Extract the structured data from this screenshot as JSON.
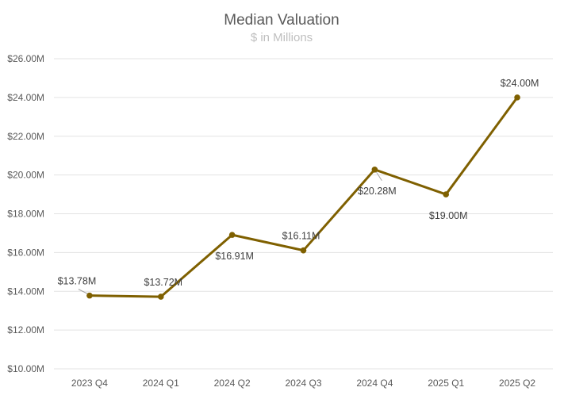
{
  "chart_data": {
    "type": "line",
    "title": "Median Valuation",
    "subtitle": "$ in Millions",
    "xlabel": "",
    "ylabel": "",
    "categories": [
      "2023 Q4",
      "2024 Q1",
      "2024 Q2",
      "2024 Q3",
      "2024 Q4",
      "2025 Q1",
      "2025 Q2"
    ],
    "series": [
      {
        "values": [
          13.78,
          13.72,
          16.91,
          16.11,
          20.28,
          19.0,
          24.0
        ],
        "labels": [
          "$13.78M",
          "$13.72M",
          "$16.91M",
          "$16.11M",
          "$20.28M",
          "$19.00M",
          "$24.00M"
        ],
        "color": "#7f6000"
      }
    ],
    "ylim": [
      10,
      26
    ],
    "yticks": [
      10,
      12,
      14,
      16,
      18,
      20,
      22,
      24,
      26
    ],
    "ytick_labels": [
      "$10.00M",
      "$12.00M",
      "$14.00M",
      "$16.00M",
      "$18.00M",
      "$20.00M",
      "$22.00M",
      "$24.00M",
      "$26.00M"
    ],
    "grid": true,
    "legend": "none"
  }
}
